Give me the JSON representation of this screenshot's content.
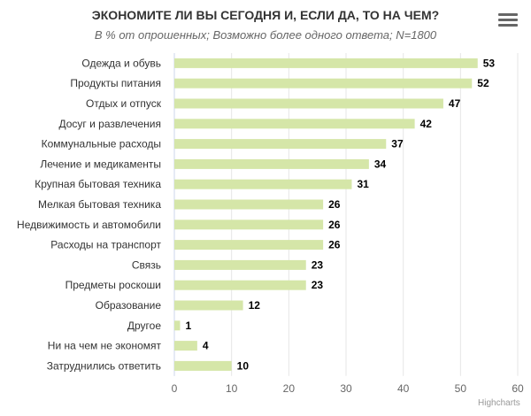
{
  "chart_data": {
    "type": "bar",
    "orientation": "horizontal",
    "title": "ЭКОНОМИТЕ ЛИ ВЫ СЕГОДНЯ И, ЕСЛИ ДА, ТО НА ЧЕМ?",
    "subtitle": "В % от опрошенных; Возможно более одного ответа; N=1800",
    "categories": [
      "Одежда и обувь",
      "Продукты питания",
      "Отдых и отпуск",
      "Досуг и развлечения",
      "Коммунальные расходы",
      "Лечение и медикаменты",
      "Крупная бытовая техника",
      "Мелкая бытовая техника",
      "Недвижимость и автомобили",
      "Расходы на транспорт",
      "Связь",
      "Предметы роскоши",
      "Образование",
      "Другое",
      "Ни на чем не экономят",
      "Затруднились ответить"
    ],
    "values": [
      53,
      52,
      47,
      42,
      37,
      34,
      31,
      26,
      26,
      26,
      23,
      23,
      12,
      1,
      4,
      10
    ],
    "xlim": [
      0,
      60
    ],
    "ticks": [
      0,
      10,
      20,
      30,
      40,
      50,
      60
    ],
    "grid": true,
    "bar_color": "#d5e6a8",
    "data_labels": true
  },
  "credits": "Highcharts",
  "menu_icon": "hamburger-icon"
}
